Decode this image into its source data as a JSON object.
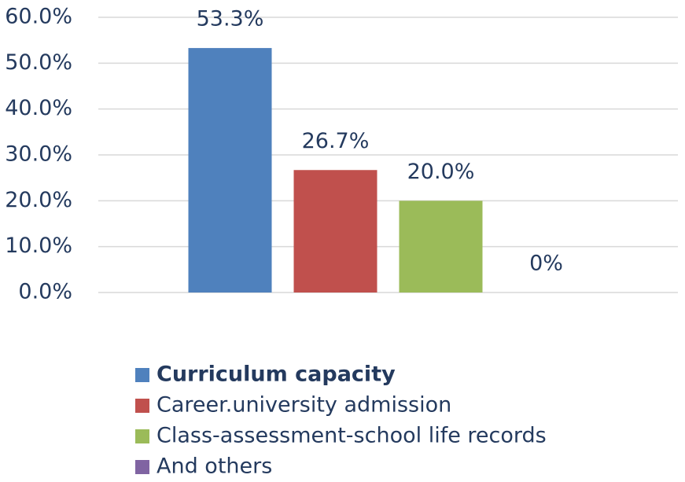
{
  "chart_data": {
    "type": "bar",
    "categories": [
      null
    ],
    "series": [
      {
        "name": "Curriculum capacity",
        "color": "#4f81bd",
        "values": [
          53.3
        ],
        "value_labels": [
          "53.3%"
        ]
      },
      {
        "name": "Career.university admission",
        "color": "#c0504d",
        "values": [
          26.7
        ],
        "value_labels": [
          "26.7%"
        ]
      },
      {
        "name": "Class-assessment-school life records",
        "color": "#9bbb59",
        "values": [
          20.0
        ],
        "value_labels": [
          "20.0%"
        ]
      },
      {
        "name": "And others",
        "color": "#8064a2",
        "values": [
          0
        ],
        "value_labels": [
          "0%"
        ]
      }
    ],
    "ylim": [
      0,
      60
    ],
    "yticks": [
      {
        "value": 0,
        "label": "0.0%"
      },
      {
        "value": 10,
        "label": "10.0%"
      },
      {
        "value": 20,
        "label": "20.0%"
      },
      {
        "value": 30,
        "label": "30.0%"
      },
      {
        "value": 40,
        "label": "40.0%"
      },
      {
        "value": 50,
        "label": "50.0%"
      },
      {
        "value": 60,
        "label": "60.0%"
      }
    ],
    "grid": true,
    "legend": "bottom"
  }
}
